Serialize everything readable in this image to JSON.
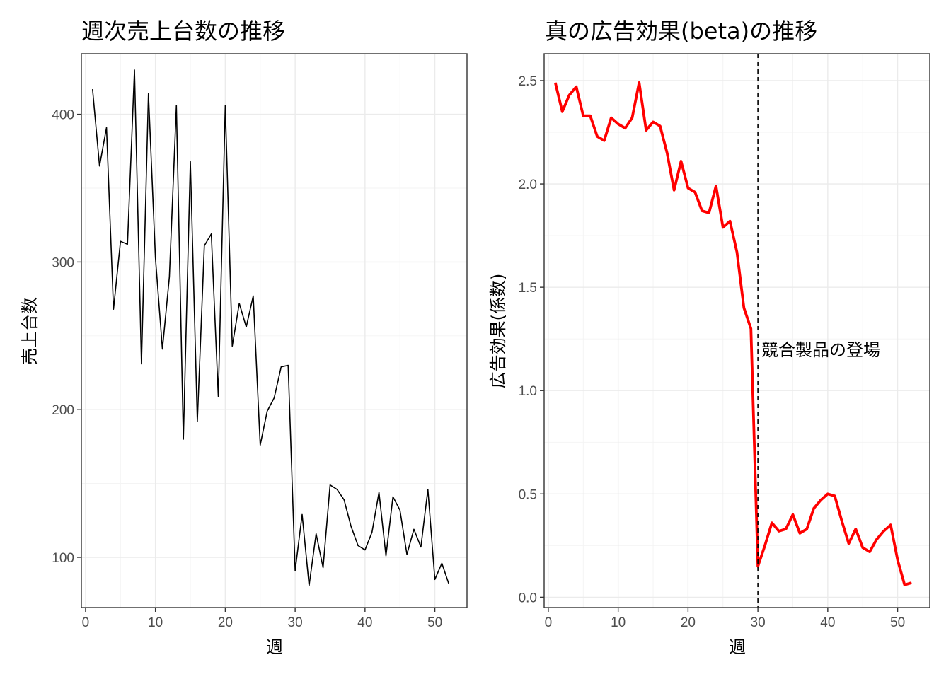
{
  "chart_data": [
    {
      "type": "line",
      "title": "週次売上台数の推移",
      "xlabel": "週",
      "ylabel": "売上台数",
      "xlim": [
        -0.6,
        54.6
      ],
      "ylim": [
        66,
        441
      ],
      "xticks": [
        0,
        10,
        20,
        30,
        40,
        50
      ],
      "yticks": [
        100,
        200,
        300,
        400
      ],
      "grid": true,
      "legend": "none",
      "series": [
        {
          "color": "#000000",
          "x": [
            1,
            2,
            3,
            4,
            5,
            6,
            7,
            8,
            9,
            10,
            11,
            12,
            13,
            14,
            15,
            16,
            17,
            18,
            19,
            20,
            21,
            22,
            23,
            24,
            25,
            26,
            27,
            28,
            29,
            30,
            31,
            32,
            33,
            34,
            35,
            36,
            37,
            38,
            39,
            40,
            41,
            42,
            43,
            44,
            45,
            46,
            47,
            48,
            49,
            50,
            51,
            52
          ],
          "y": [
            417,
            365,
            391,
            268,
            314,
            312,
            430,
            231,
            414,
            303,
            241,
            290,
            406,
            180,
            368,
            192,
            311,
            319,
            209,
            406,
            243,
            272,
            256,
            277,
            176,
            199,
            208,
            229,
            230,
            91,
            129,
            81,
            116,
            93,
            149,
            146,
            139,
            121,
            108,
            105,
            117,
            144,
            101,
            141,
            132,
            102,
            119,
            107,
            146,
            85,
            96,
            82
          ]
        }
      ]
    },
    {
      "type": "line",
      "title": "真の広告効果(beta)の推移",
      "xlabel": "週",
      "ylabel": "広告効果(係数)",
      "xlim": [
        -0.6,
        54.6
      ],
      "ylim": [
        -0.05,
        2.63
      ],
      "xticks": [
        0,
        10,
        20,
        30,
        40,
        50
      ],
      "yticks": [
        0.0,
        0.5,
        1.0,
        1.5,
        2.0,
        2.5
      ],
      "ytick_labels": [
        "0.0",
        "0.5",
        "1.0",
        "1.5",
        "2.0",
        "2.5"
      ],
      "grid": true,
      "legend": "none",
      "vline": {
        "x": 30,
        "style": "dashed",
        "color": "#000000"
      },
      "annotations": [
        {
          "text": "競合製品の登場",
          "x": 30.5,
          "y": 1.2
        }
      ],
      "series": [
        {
          "color": "#ff0000",
          "x": [
            1,
            2,
            3,
            4,
            5,
            6,
            7,
            8,
            9,
            10,
            11,
            12,
            13,
            14,
            15,
            16,
            17,
            18,
            19,
            20,
            21,
            22,
            23,
            24,
            25,
            26,
            27,
            28,
            29,
            30,
            31,
            32,
            33,
            34,
            35,
            36,
            37,
            38,
            39,
            40,
            41,
            42,
            43,
            44,
            45,
            46,
            47,
            48,
            49,
            50,
            51,
            52
          ],
          "y": [
            2.49,
            2.35,
            2.43,
            2.47,
            2.33,
            2.33,
            2.23,
            2.21,
            2.32,
            2.29,
            2.27,
            2.32,
            2.49,
            2.26,
            2.3,
            2.28,
            2.15,
            1.97,
            2.11,
            1.98,
            1.96,
            1.87,
            1.86,
            1.99,
            1.79,
            1.82,
            1.67,
            1.4,
            1.3,
            0.15,
            0.25,
            0.36,
            0.32,
            0.33,
            0.4,
            0.31,
            0.33,
            0.43,
            0.47,
            0.5,
            0.49,
            0.37,
            0.26,
            0.33,
            0.24,
            0.22,
            0.28,
            0.32,
            0.35,
            0.18,
            0.06,
            0.07
          ]
        }
      ]
    }
  ]
}
